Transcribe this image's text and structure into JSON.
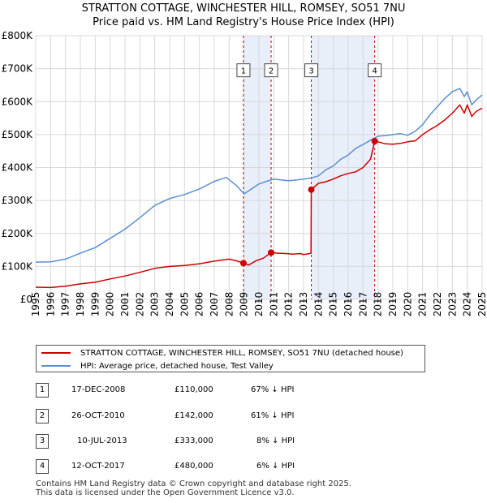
{
  "chart_data": {
    "type": "line",
    "title": "STRATTON COTTAGE, WINCHESTER HILL, ROMSEY, SO51 7NU",
    "subtitle": "Price paid vs. HM Land Registry's House Price Index (HPI)",
    "xlim": [
      1995,
      2025
    ],
    "ylim": [
      0,
      800000
    ],
    "x_ticks": [
      "1995",
      "1996",
      "1997",
      "1998",
      "1999",
      "2000",
      "2001",
      "2002",
      "2003",
      "2004",
      "2005",
      "2006",
      "2007",
      "2008",
      "2009",
      "2010",
      "2011",
      "2012",
      "2013",
      "2014",
      "2015",
      "2016",
      "2017",
      "2018",
      "2019",
      "2020",
      "2021",
      "2022",
      "2023",
      "2024",
      "2025"
    ],
    "y_ticks": [
      {
        "value": 0,
        "label": "£0"
      },
      {
        "value": 100000,
        "label": "£100K"
      },
      {
        "value": 200000,
        "label": "£200K"
      },
      {
        "value": 300000,
        "label": "£300K"
      },
      {
        "value": 400000,
        "label": "£400K"
      },
      {
        "value": 500000,
        "label": "£500K"
      },
      {
        "value": 600000,
        "label": "£600K"
      },
      {
        "value": 700000,
        "label": "£700K"
      },
      {
        "value": 800000,
        "label": "£800K"
      }
    ],
    "grid": true,
    "shaded_ranges": [
      [
        2008.96,
        2010.82
      ],
      [
        2013.52,
        2017.78
      ]
    ],
    "series": [
      {
        "name": "STRATTON COTTAGE, WINCHESTER HILL, ROMSEY, SO51 7NU (detached house)",
        "color": "#cc0000",
        "x": [
          1995.0,
          1996.0,
          1997.0,
          1998.0,
          1999.0,
          2000.0,
          2001.0,
          2002.0,
          2003.0,
          2004.0,
          2005.0,
          2006.0,
          2007.0,
          2008.0,
          2008.5,
          2008.96,
          2009.3,
          2009.8,
          2010.3,
          2010.82,
          2011.3,
          2011.8,
          2012.3,
          2012.8,
          2013.0,
          2013.3,
          2013.5,
          2013.52,
          2014.0,
          2014.5,
          2015.0,
          2015.5,
          2016.0,
          2016.5,
          2017.0,
          2017.5,
          2017.78,
          2018.0,
          2018.5,
          2019.0,
          2019.5,
          2020.0,
          2020.5,
          2021.0,
          2021.5,
          2022.0,
          2022.5,
          2023.0,
          2023.5,
          2023.8,
          2024.0,
          2024.3,
          2024.6,
          2025.0
        ],
        "y": [
          37000,
          36000,
          40000,
          47000,
          52000,
          62000,
          71000,
          82000,
          94000,
          100000,
          103000,
          108000,
          116000,
          122000,
          117000,
          110000,
          104000,
          117000,
          125000,
          142000,
          140000,
          139000,
          137000,
          139000,
          136000,
          138000,
          140000,
          333000,
          352000,
          357000,
          365000,
          375000,
          382000,
          387000,
          400000,
          425000,
          480000,
          478000,
          472000,
          471000,
          473000,
          478000,
          481000,
          500000,
          515000,
          528000,
          545000,
          565000,
          590000,
          565000,
          590000,
          555000,
          570000,
          580000
        ]
      },
      {
        "name": "HPI: Average price, detached house, Test Valley",
        "color": "#5b8fd0",
        "x": [
          1995.0,
          1996.0,
          1997.0,
          1998.0,
          1999.0,
          2000.0,
          2001.0,
          2002.0,
          2003.0,
          2004.0,
          2005.0,
          2006.0,
          2007.0,
          2007.8,
          2008.5,
          2009.0,
          2009.5,
          2010.0,
          2010.5,
          2011.0,
          2011.5,
          2012.0,
          2012.5,
          2013.0,
          2013.5,
          2014.0,
          2014.5,
          2015.0,
          2015.5,
          2016.0,
          2016.5,
          2017.0,
          2017.5,
          2018.0,
          2018.5,
          2019.0,
          2019.5,
          2020.0,
          2020.5,
          2021.0,
          2021.5,
          2022.0,
          2022.5,
          2023.0,
          2023.5,
          2023.8,
          2024.0,
          2024.3,
          2024.6,
          2025.0
        ],
        "y": [
          113000,
          114000,
          122000,
          140000,
          157000,
          185000,
          213000,
          248000,
          285000,
          306000,
          318000,
          335000,
          358000,
          370000,
          345000,
          320000,
          335000,
          350000,
          358000,
          365000,
          362000,
          360000,
          362000,
          365000,
          368000,
          375000,
          393000,
          405000,
          425000,
          438000,
          458000,
          470000,
          483000,
          495000,
          497000,
          500000,
          503000,
          498000,
          510000,
          530000,
          560000,
          585000,
          610000,
          630000,
          640000,
          615000,
          630000,
          590000,
          605000,
          620000
        ]
      }
    ],
    "sale_markers": [
      {
        "label": "1",
        "x": 2008.96,
        "y": 110000
      },
      {
        "label": "2",
        "x": 2010.82,
        "y": 142000
      },
      {
        "label": "3",
        "x": 2013.52,
        "y": 333000
      },
      {
        "label": "4",
        "x": 2017.78,
        "y": 480000
      }
    ],
    "marker_label_value": 695000
  },
  "legend": {
    "red_label": "STRATTON COTTAGE, WINCHESTER HILL, ROMSEY, SO51 7NU (detached house)",
    "blue_label": "HPI: Average price, detached house, Test Valley"
  },
  "sales": [
    {
      "num": "1",
      "date": "17-DEC-2008",
      "price": "£110,000",
      "hpi": "67% ↓ HPI"
    },
    {
      "num": "2",
      "date": "26-OCT-2010",
      "price": "£142,000",
      "hpi": "61% ↓ HPI"
    },
    {
      "num": "3",
      "date": "10-JUL-2013",
      "price": "£333,000",
      "hpi": "8% ↓ HPI"
    },
    {
      "num": "4",
      "date": "12-OCT-2017",
      "price": "£480,000",
      "hpi": "6% ↓ HPI"
    }
  ],
  "footer": {
    "line1": "Contains HM Land Registry data © Crown copyright and database right 2025.",
    "line2": "This data is licensed under the Open Government Licence v3.0."
  },
  "colors": {
    "red": "#cc0000",
    "blue": "#5b8fd0",
    "shade": "#e8eefa",
    "grid": "#d8d8d8",
    "vline": "#cc0000"
  }
}
